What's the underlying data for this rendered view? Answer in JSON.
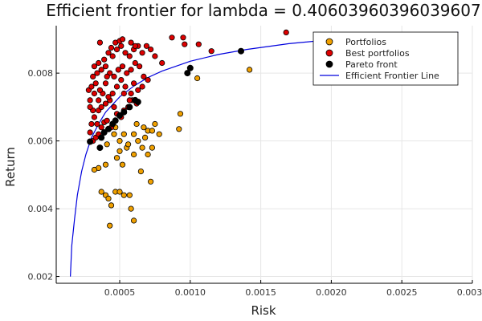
{
  "chart_data": {
    "type": "scatter",
    "title": "Efficient frontier for lambda = 0.40603960396039607",
    "xlabel": "Risk",
    "ylabel": "Return",
    "xlim": [
      5e-05,
      0.003
    ],
    "ylim": [
      0.0018,
      0.0094
    ],
    "xticks": [
      0.0005,
      0.001,
      0.0015,
      0.002,
      0.0025,
      0.003
    ],
    "xtick_labels": [
      "0.0005",
      "0.0010",
      "0.0015",
      "0.0020",
      "0.0025",
      "0.0030"
    ],
    "yticks": [
      0.002,
      0.004,
      0.006,
      0.008
    ],
    "ytick_labels": [
      "0.002",
      "0.004",
      "0.006",
      "0.008"
    ],
    "grid": true,
    "legend_position": "top-right",
    "colors": {
      "portfolios": "#f0a000",
      "best": "#dd0000",
      "pareto": "#000000",
      "line": "#0000dd"
    },
    "legend": [
      {
        "label": "Portfolios",
        "kind": "marker",
        "color": "#f0a000"
      },
      {
        "label": "Best portfolios",
        "kind": "marker",
        "color": "#dd0000"
      },
      {
        "label": "Pareto front",
        "kind": "marker",
        "color": "#000000"
      },
      {
        "label": "Efficient Frontier Line",
        "kind": "line",
        "color": "#0000dd"
      }
    ],
    "series": [
      {
        "name": "Portfolios",
        "points": [
          [
            0.00037,
            0.0045
          ],
          [
            0.0004,
            0.0044
          ],
          [
            0.00042,
            0.0043
          ],
          [
            0.00047,
            0.0045
          ],
          [
            0.0005,
            0.0045
          ],
          [
            0.00053,
            0.0044
          ],
          [
            0.00044,
            0.0041
          ],
          [
            0.00057,
            0.0044
          ],
          [
            0.00058,
            0.004
          ],
          [
            0.0006,
            0.00365
          ],
          [
            0.00043,
            0.0035
          ],
          [
            0.00035,
            0.0052
          ],
          [
            0.00032,
            0.00515
          ],
          [
            0.0004,
            0.0053
          ],
          [
            0.00048,
            0.0055
          ],
          [
            0.0005,
            0.0057
          ],
          [
            0.00052,
            0.0053
          ],
          [
            0.00055,
            0.0058
          ],
          [
            0.0006,
            0.0056
          ],
          [
            0.00065,
            0.0051
          ],
          [
            0.0007,
            0.0056
          ],
          [
            0.00072,
            0.0048
          ],
          [
            0.00041,
            0.0059
          ],
          [
            0.00046,
            0.0062
          ],
          [
            0.0005,
            0.006
          ],
          [
            0.00053,
            0.0062
          ],
          [
            0.00056,
            0.0059
          ],
          [
            0.0006,
            0.0062
          ],
          [
            0.00063,
            0.006
          ],
          [
            0.00066,
            0.0058
          ],
          [
            0.00068,
            0.0061
          ],
          [
            0.0007,
            0.0063
          ],
          [
            0.00073,
            0.0058
          ],
          [
            0.00067,
            0.0064
          ],
          [
            0.00062,
            0.0065
          ],
          [
            0.00078,
            0.0062
          ],
          [
            0.00073,
            0.0063
          ],
          [
            0.00092,
            0.00635
          ],
          [
            0.00093,
            0.0068
          ],
          [
            0.00105,
            0.00785
          ],
          [
            0.00142,
            0.0081
          ],
          [
            0.00075,
            0.0065
          ],
          [
            0.00047,
            0.0064
          ]
        ]
      },
      {
        "name": "Best portfolios",
        "points": [
          [
            0.00028,
            0.0075
          ],
          [
            0.0003,
            0.0076
          ],
          [
            0.00029,
            0.0072
          ],
          [
            0.00031,
            0.0069
          ],
          [
            0.0003,
            0.0065
          ],
          [
            0.00029,
            0.00625
          ],
          [
            0.00031,
            0.006
          ],
          [
            0.00033,
            0.0061
          ],
          [
            0.00035,
            0.0062
          ],
          [
            0.00037,
            0.0064
          ],
          [
            0.00039,
            0.00655
          ],
          [
            0.00041,
            0.0066
          ],
          [
            0.00044,
            0.0064
          ],
          [
            0.00034,
            0.0065
          ],
          [
            0.00032,
            0.0067
          ],
          [
            0.00035,
            0.0069
          ],
          [
            0.00037,
            0.007
          ],
          [
            0.0004,
            0.0071
          ],
          [
            0.00043,
            0.0072
          ],
          [
            0.00046,
            0.007
          ],
          [
            0.00048,
            0.0068
          ],
          [
            0.00051,
            0.0067
          ],
          [
            0.00053,
            0.0069
          ],
          [
            0.00056,
            0.007
          ],
          [
            0.00059,
            0.0072
          ],
          [
            0.00062,
            0.0071
          ],
          [
            0.00058,
            0.0074
          ],
          [
            0.00054,
            0.0076
          ],
          [
            0.00051,
            0.0078
          ],
          [
            0.00048,
            0.0076
          ],
          [
            0.00045,
            0.0074
          ],
          [
            0.00042,
            0.0073
          ],
          [
            0.00038,
            0.0074
          ],
          [
            0.00036,
            0.0075
          ],
          [
            0.00033,
            0.0077
          ],
          [
            0.00031,
            0.0079
          ],
          [
            0.00034,
            0.008
          ],
          [
            0.00037,
            0.0081
          ],
          [
            0.0004,
            0.0082
          ],
          [
            0.00043,
            0.008
          ],
          [
            0.00046,
            0.0079
          ],
          [
            0.00049,
            0.0081
          ],
          [
            0.00052,
            0.0082
          ],
          [
            0.00055,
            0.008
          ],
          [
            0.00058,
            0.0081
          ],
          [
            0.00061,
            0.0083
          ],
          [
            0.00064,
            0.0082
          ],
          [
            0.00067,
            0.0079
          ],
          [
            0.0007,
            0.0078
          ],
          [
            0.00066,
            0.0076
          ],
          [
            0.00063,
            0.0075
          ],
          [
            0.0006,
            0.0077
          ],
          [
            0.00032,
            0.0082
          ],
          [
            0.00035,
            0.0083
          ],
          [
            0.00039,
            0.0084
          ],
          [
            0.00042,
            0.0086
          ],
          [
            0.00045,
            0.0085
          ],
          [
            0.00048,
            0.0087
          ],
          [
            0.00051,
            0.0088
          ],
          [
            0.00054,
            0.0086
          ],
          [
            0.00057,
            0.0085
          ],
          [
            0.0006,
            0.0087
          ],
          [
            0.00063,
            0.0088
          ],
          [
            0.00066,
            0.0086
          ],
          [
            0.00069,
            0.0088
          ],
          [
            0.00072,
            0.0087
          ],
          [
            0.00075,
            0.0085
          ],
          [
            0.00036,
            0.0089
          ],
          [
            0.00047,
            0.0089
          ],
          [
            0.0005,
            0.00895
          ],
          [
            0.00052,
            0.009
          ],
          [
            0.00058,
            0.0089
          ],
          [
            0.00061,
            0.0088
          ],
          [
            0.00044,
            0.00875
          ],
          [
            0.0008,
            0.0083
          ],
          [
            0.00087,
            0.00905
          ],
          [
            0.00095,
            0.00905
          ],
          [
            0.00096,
            0.00885
          ],
          [
            0.00106,
            0.00885
          ],
          [
            0.00115,
            0.00865
          ],
          [
            0.00168,
            0.0092
          ],
          [
            0.0004,
            0.0077
          ],
          [
            0.00053,
            0.0074
          ],
          [
            0.00057,
            0.0072
          ],
          [
            0.00035,
            0.0072
          ],
          [
            0.00029,
            0.007
          ],
          [
            0.00032,
            0.0074
          ],
          [
            0.00041,
            0.0079
          ]
        ]
      },
      {
        "name": "Pareto front",
        "points": [
          [
            0.00029,
            0.00598
          ],
          [
            0.00036,
            0.0058
          ],
          [
            0.00037,
            0.0061
          ],
          [
            0.00039,
            0.00625
          ],
          [
            0.00042,
            0.00635
          ],
          [
            0.00045,
            0.0065
          ],
          [
            0.00047,
            0.0066
          ],
          [
            0.0005,
            0.00675
          ],
          [
            0.00053,
            0.00685
          ],
          [
            0.00057,
            0.007
          ],
          [
            0.00061,
            0.0072
          ],
          [
            0.00063,
            0.00715
          ],
          [
            0.00098,
            0.008
          ],
          [
            0.001,
            0.00815
          ],
          [
            0.00136,
            0.00865
          ]
        ]
      }
    ],
    "frontier_line": {
      "name": "Efficient Frontier Line",
      "x": [
        0.00015,
        0.00016,
        0.00018,
        0.0002,
        0.00023,
        0.00026,
        0.0003,
        0.00035,
        0.0004,
        0.0005,
        0.0006,
        0.0007,
        0.0008,
        0.001,
        0.0012,
        0.0014,
        0.0017,
        0.002,
        0.0024,
        0.0029
      ],
      "y": [
        0.002,
        0.0029,
        0.0037,
        0.0044,
        0.0051,
        0.0056,
        0.0061,
        0.0065,
        0.00685,
        0.0073,
        0.00762,
        0.00787,
        0.00806,
        0.00835,
        0.00855,
        0.0087,
        0.00887,
        0.00899,
        0.0091,
        0.0092
      ]
    }
  }
}
